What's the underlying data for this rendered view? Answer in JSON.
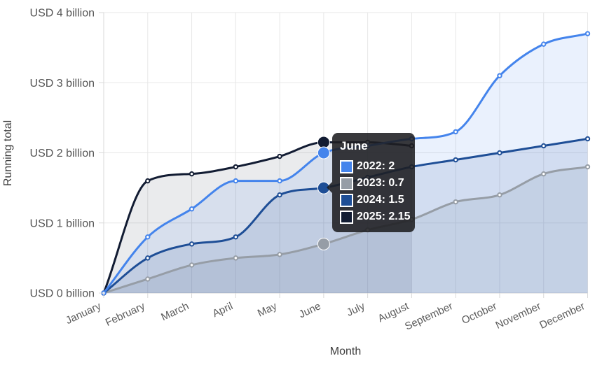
{
  "chart_data": {
    "type": "line",
    "title": "",
    "xlabel": "Month",
    "ylabel": "Running total",
    "x_categories": [
      "January",
      "February",
      "March",
      "April",
      "May",
      "June",
      "July",
      "August",
      "September",
      "October",
      "November",
      "December"
    ],
    "y_ticks": [
      "USD 0 billion",
      "USD 1 billion",
      "USD 2 billion",
      "USD 3 billion",
      "USD 4 billion"
    ],
    "ylim": [
      0,
      4
    ],
    "grid": true,
    "legend_position": "none",
    "series": [
      {
        "name": "2023",
        "color": "#969da6",
        "fill_opacity": 0.16,
        "values": [
          0,
          0.2,
          0.4,
          0.5,
          0.55,
          0.7,
          0.9,
          1.05,
          1.3,
          1.4,
          1.7,
          1.8
        ]
      },
      {
        "name": "2024",
        "color": "#1e4e96",
        "fill_opacity": 0.12,
        "values": [
          0,
          0.5,
          0.7,
          0.8,
          1.4,
          1.5,
          1.65,
          1.8,
          1.9,
          2.0,
          2.1,
          2.2
        ]
      },
      {
        "name": "2025",
        "color": "#121c33",
        "fill_opacity": 0.09,
        "values": [
          0,
          1.6,
          1.7,
          1.8,
          1.95,
          2.15,
          2.15,
          2.1
        ]
      },
      {
        "name": "2022",
        "color": "#4484ec",
        "fill_opacity": 0.11,
        "values": [
          0,
          0.8,
          1.2,
          1.6,
          1.6,
          2.0,
          2.1,
          2.2,
          2.3,
          3.1,
          3.55,
          3.7
        ]
      }
    ],
    "tooltip": {
      "title": "June",
      "month_index": 5,
      "entries": [
        {
          "label": "2022",
          "value": "2"
        },
        {
          "label": "2023",
          "value": "0.7"
        },
        {
          "label": "2024",
          "value": "1.5"
        },
        {
          "label": "2025",
          "value": "2.15"
        }
      ]
    }
  },
  "colors": {
    "background": "#ffffff",
    "grid": "#e7e7e7",
    "axis_line": "#d9d9d9",
    "tick_text": "#565656",
    "axis_title_text": "#3f3f3f",
    "tooltip_bg": "rgba(30,30,33,0.88)",
    "tooltip_text": "#ffffff"
  }
}
